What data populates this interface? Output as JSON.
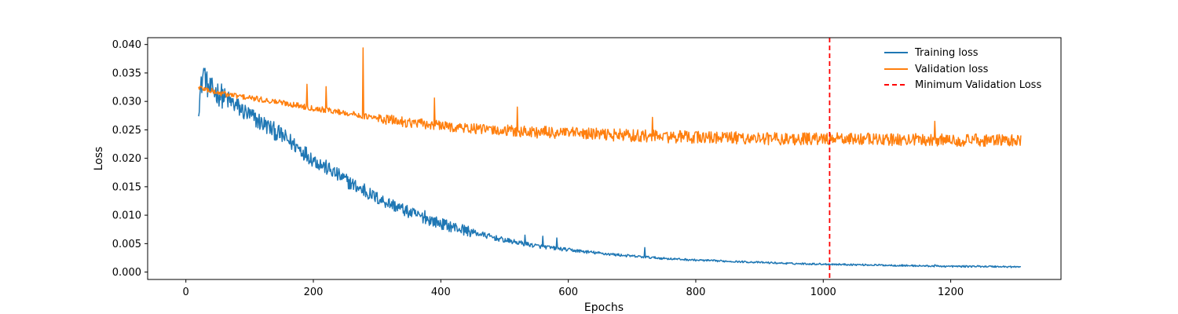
{
  "chart_data": {
    "type": "line",
    "title": "",
    "xlabel": "Epochs",
    "ylabel": "Loss",
    "xlim": [
      -60,
      1373
    ],
    "ylim": [
      -0.0013,
      0.0412
    ],
    "xticks": [
      0,
      200,
      400,
      600,
      800,
      1000,
      1200
    ],
    "yticks": [
      0.0,
      0.005,
      0.01,
      0.015,
      0.02,
      0.025,
      0.03,
      0.035,
      0.04
    ],
    "xtick_labels": [
      "0",
      "200",
      "400",
      "600",
      "800",
      "1000",
      "1200"
    ],
    "ytick_labels": [
      "0.000",
      "0.005",
      "0.010",
      "0.015",
      "0.020",
      "0.025",
      "0.030",
      "0.035",
      "0.040"
    ],
    "grid": false,
    "legend_position": "top-right",
    "series": [
      {
        "name": "Training loss",
        "color": "#1f77b4",
        "style": "solid",
        "x_start": 20,
        "x_end": 1310,
        "points": [
          [
            20,
            0.0295
          ],
          [
            28,
            0.0355
          ],
          [
            35,
            0.0322
          ],
          [
            50,
            0.0315
          ],
          [
            75,
            0.0295
          ],
          [
            100,
            0.0275
          ],
          [
            125,
            0.0258
          ],
          [
            150,
            0.024
          ],
          [
            175,
            0.022
          ],
          [
            200,
            0.0198
          ],
          [
            225,
            0.018
          ],
          [
            250,
            0.0162
          ],
          [
            275,
            0.0145
          ],
          [
            300,
            0.013
          ],
          [
            325,
            0.0118
          ],
          [
            350,
            0.0105
          ],
          [
            375,
            0.0095
          ],
          [
            400,
            0.0085
          ],
          [
            450,
            0.007
          ],
          [
            500,
            0.0056
          ],
          [
            550,
            0.0046
          ],
          [
            600,
            0.0039
          ],
          [
            650,
            0.0033
          ],
          [
            700,
            0.0028
          ],
          [
            750,
            0.0024
          ],
          [
            800,
            0.0021
          ],
          [
            850,
            0.0019
          ],
          [
            900,
            0.0017
          ],
          [
            950,
            0.0015
          ],
          [
            1000,
            0.0014
          ],
          [
            1050,
            0.0013
          ],
          [
            1100,
            0.0012
          ],
          [
            1150,
            0.0011
          ],
          [
            1200,
            0.001
          ],
          [
            1250,
            0.001
          ],
          [
            1310,
            0.0009
          ]
        ],
        "spikes": [
          [
            28,
            0.0358
          ],
          [
            130,
            0.0262
          ],
          [
            280,
            0.0155
          ],
          [
            290,
            0.0137
          ],
          [
            375,
            0.0108
          ],
          [
            532,
            0.0065
          ],
          [
            560,
            0.0063
          ],
          [
            582,
            0.006
          ],
          [
            720,
            0.0043
          ],
          [
            1175,
            0.0013
          ]
        ]
      },
      {
        "name": "Validation loss",
        "color": "#ff7f0e",
        "style": "solid",
        "x_start": 20,
        "x_end": 1310,
        "points": [
          [
            20,
            0.0325
          ],
          [
            50,
            0.0315
          ],
          [
            100,
            0.0306
          ],
          [
            150,
            0.0298
          ],
          [
            200,
            0.0288
          ],
          [
            250,
            0.028
          ],
          [
            300,
            0.027
          ],
          [
            350,
            0.0263
          ],
          [
            400,
            0.0257
          ],
          [
            450,
            0.0252
          ],
          [
            500,
            0.0248
          ],
          [
            550,
            0.0246
          ],
          [
            600,
            0.0244
          ],
          [
            650,
            0.0242
          ],
          [
            700,
            0.024
          ],
          [
            750,
            0.0238
          ],
          [
            800,
            0.0237
          ],
          [
            850,
            0.0236
          ],
          [
            900,
            0.0235
          ],
          [
            950,
            0.0234
          ],
          [
            1000,
            0.0234
          ],
          [
            1050,
            0.0234
          ],
          [
            1100,
            0.0233
          ],
          [
            1150,
            0.0233
          ],
          [
            1200,
            0.0232
          ],
          [
            1250,
            0.0232
          ],
          [
            1310,
            0.023
          ]
        ],
        "spikes": [
          [
            190,
            0.033
          ],
          [
            220,
            0.0326
          ],
          [
            278,
            0.0394
          ],
          [
            390,
            0.0306
          ],
          [
            520,
            0.029
          ],
          [
            732,
            0.0272
          ],
          [
            1175,
            0.0265
          ]
        ]
      },
      {
        "name": "Minimum Validation Loss",
        "color": "#ff0000",
        "style": "dashed",
        "vertical_x": 1010
      }
    ]
  }
}
